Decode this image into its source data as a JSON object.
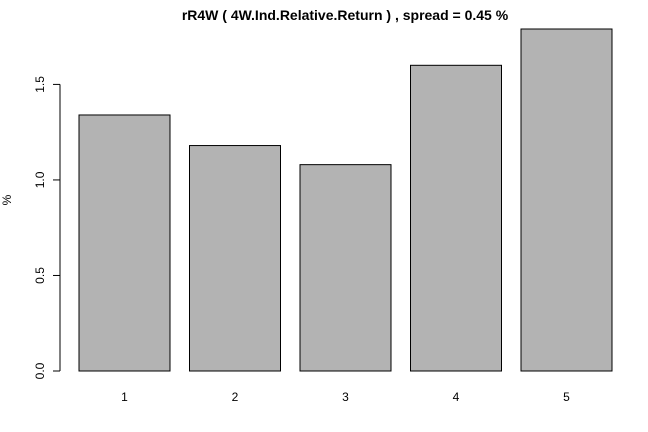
{
  "chart_data": {
    "type": "bar",
    "title": "rR4W ( 4W.Ind.Relative.Return ) , spread = 0.45 %",
    "xlabel": "",
    "ylabel": "%",
    "categories": [
      "1",
      "2",
      "3",
      "4",
      "5"
    ],
    "values": [
      1.34,
      1.18,
      1.08,
      1.6,
      1.79
    ],
    "ylim": [
      0,
      1.79
    ],
    "yticks": [
      0.0,
      0.5,
      1.0,
      1.5
    ],
    "ytick_labels": [
      "0.0",
      "0.5",
      "1.0",
      "1.5"
    ],
    "bar_color": "#b3b3b3",
    "bar_border_color": "#000000",
    "grid": false,
    "legend": "none"
  }
}
